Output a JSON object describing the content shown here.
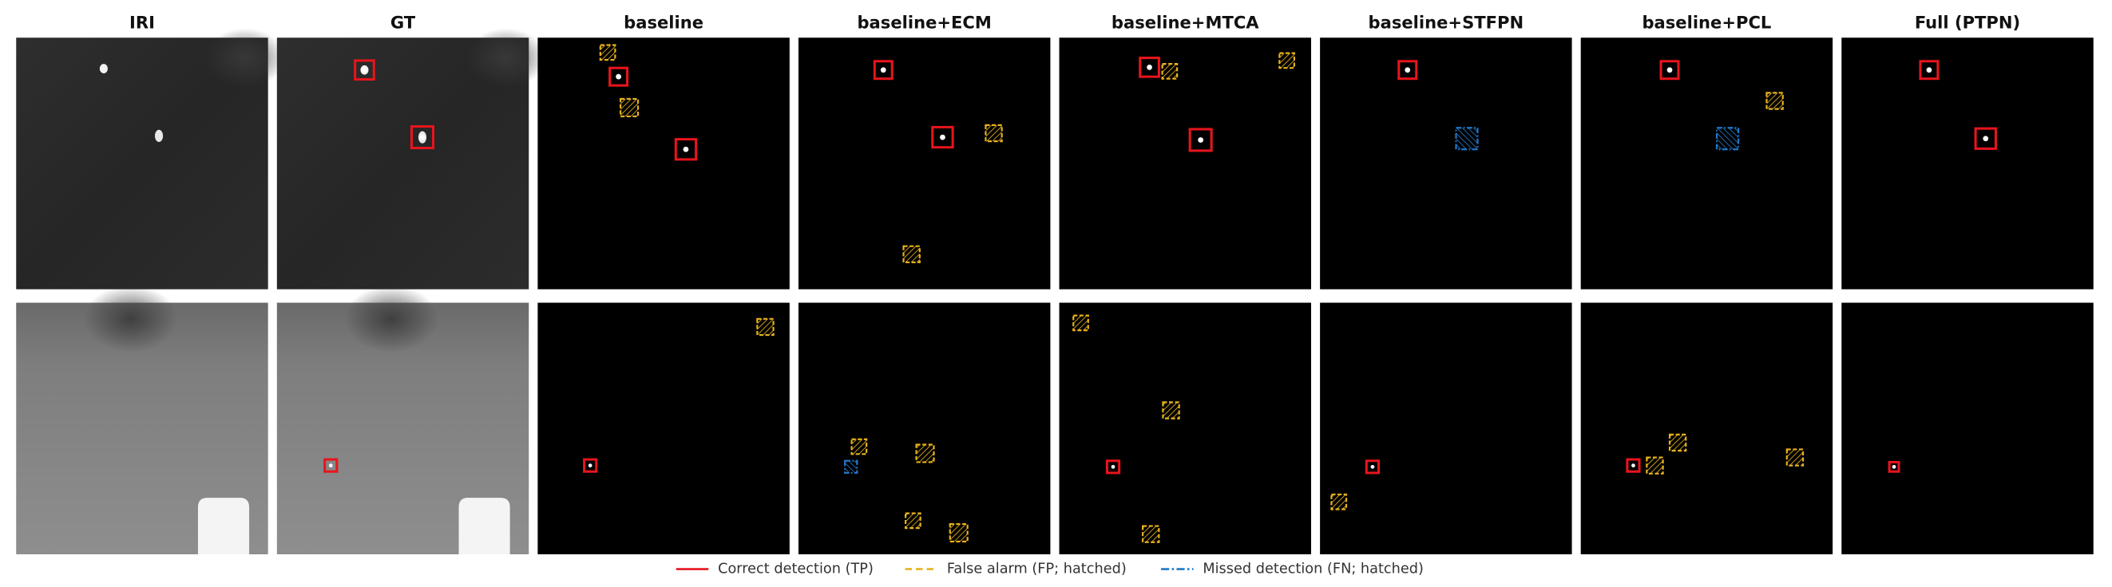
{
  "columns": [
    "IRI",
    "GT",
    "baseline",
    "baseline+ECM",
    "baseline+MTCA",
    "baseline+STFPN",
    "baseline+PCL",
    "Full (PTPN)"
  ],
  "legend": [
    {
      "label": "Correct detection (TP)",
      "color": "#e8141c"
    },
    {
      "label": "False alarm (FP; hatched)",
      "color": "#e8b21c"
    },
    {
      "label": "Missed detection (FN; hatched)",
      "color": "#1f78c8"
    }
  ]
}
